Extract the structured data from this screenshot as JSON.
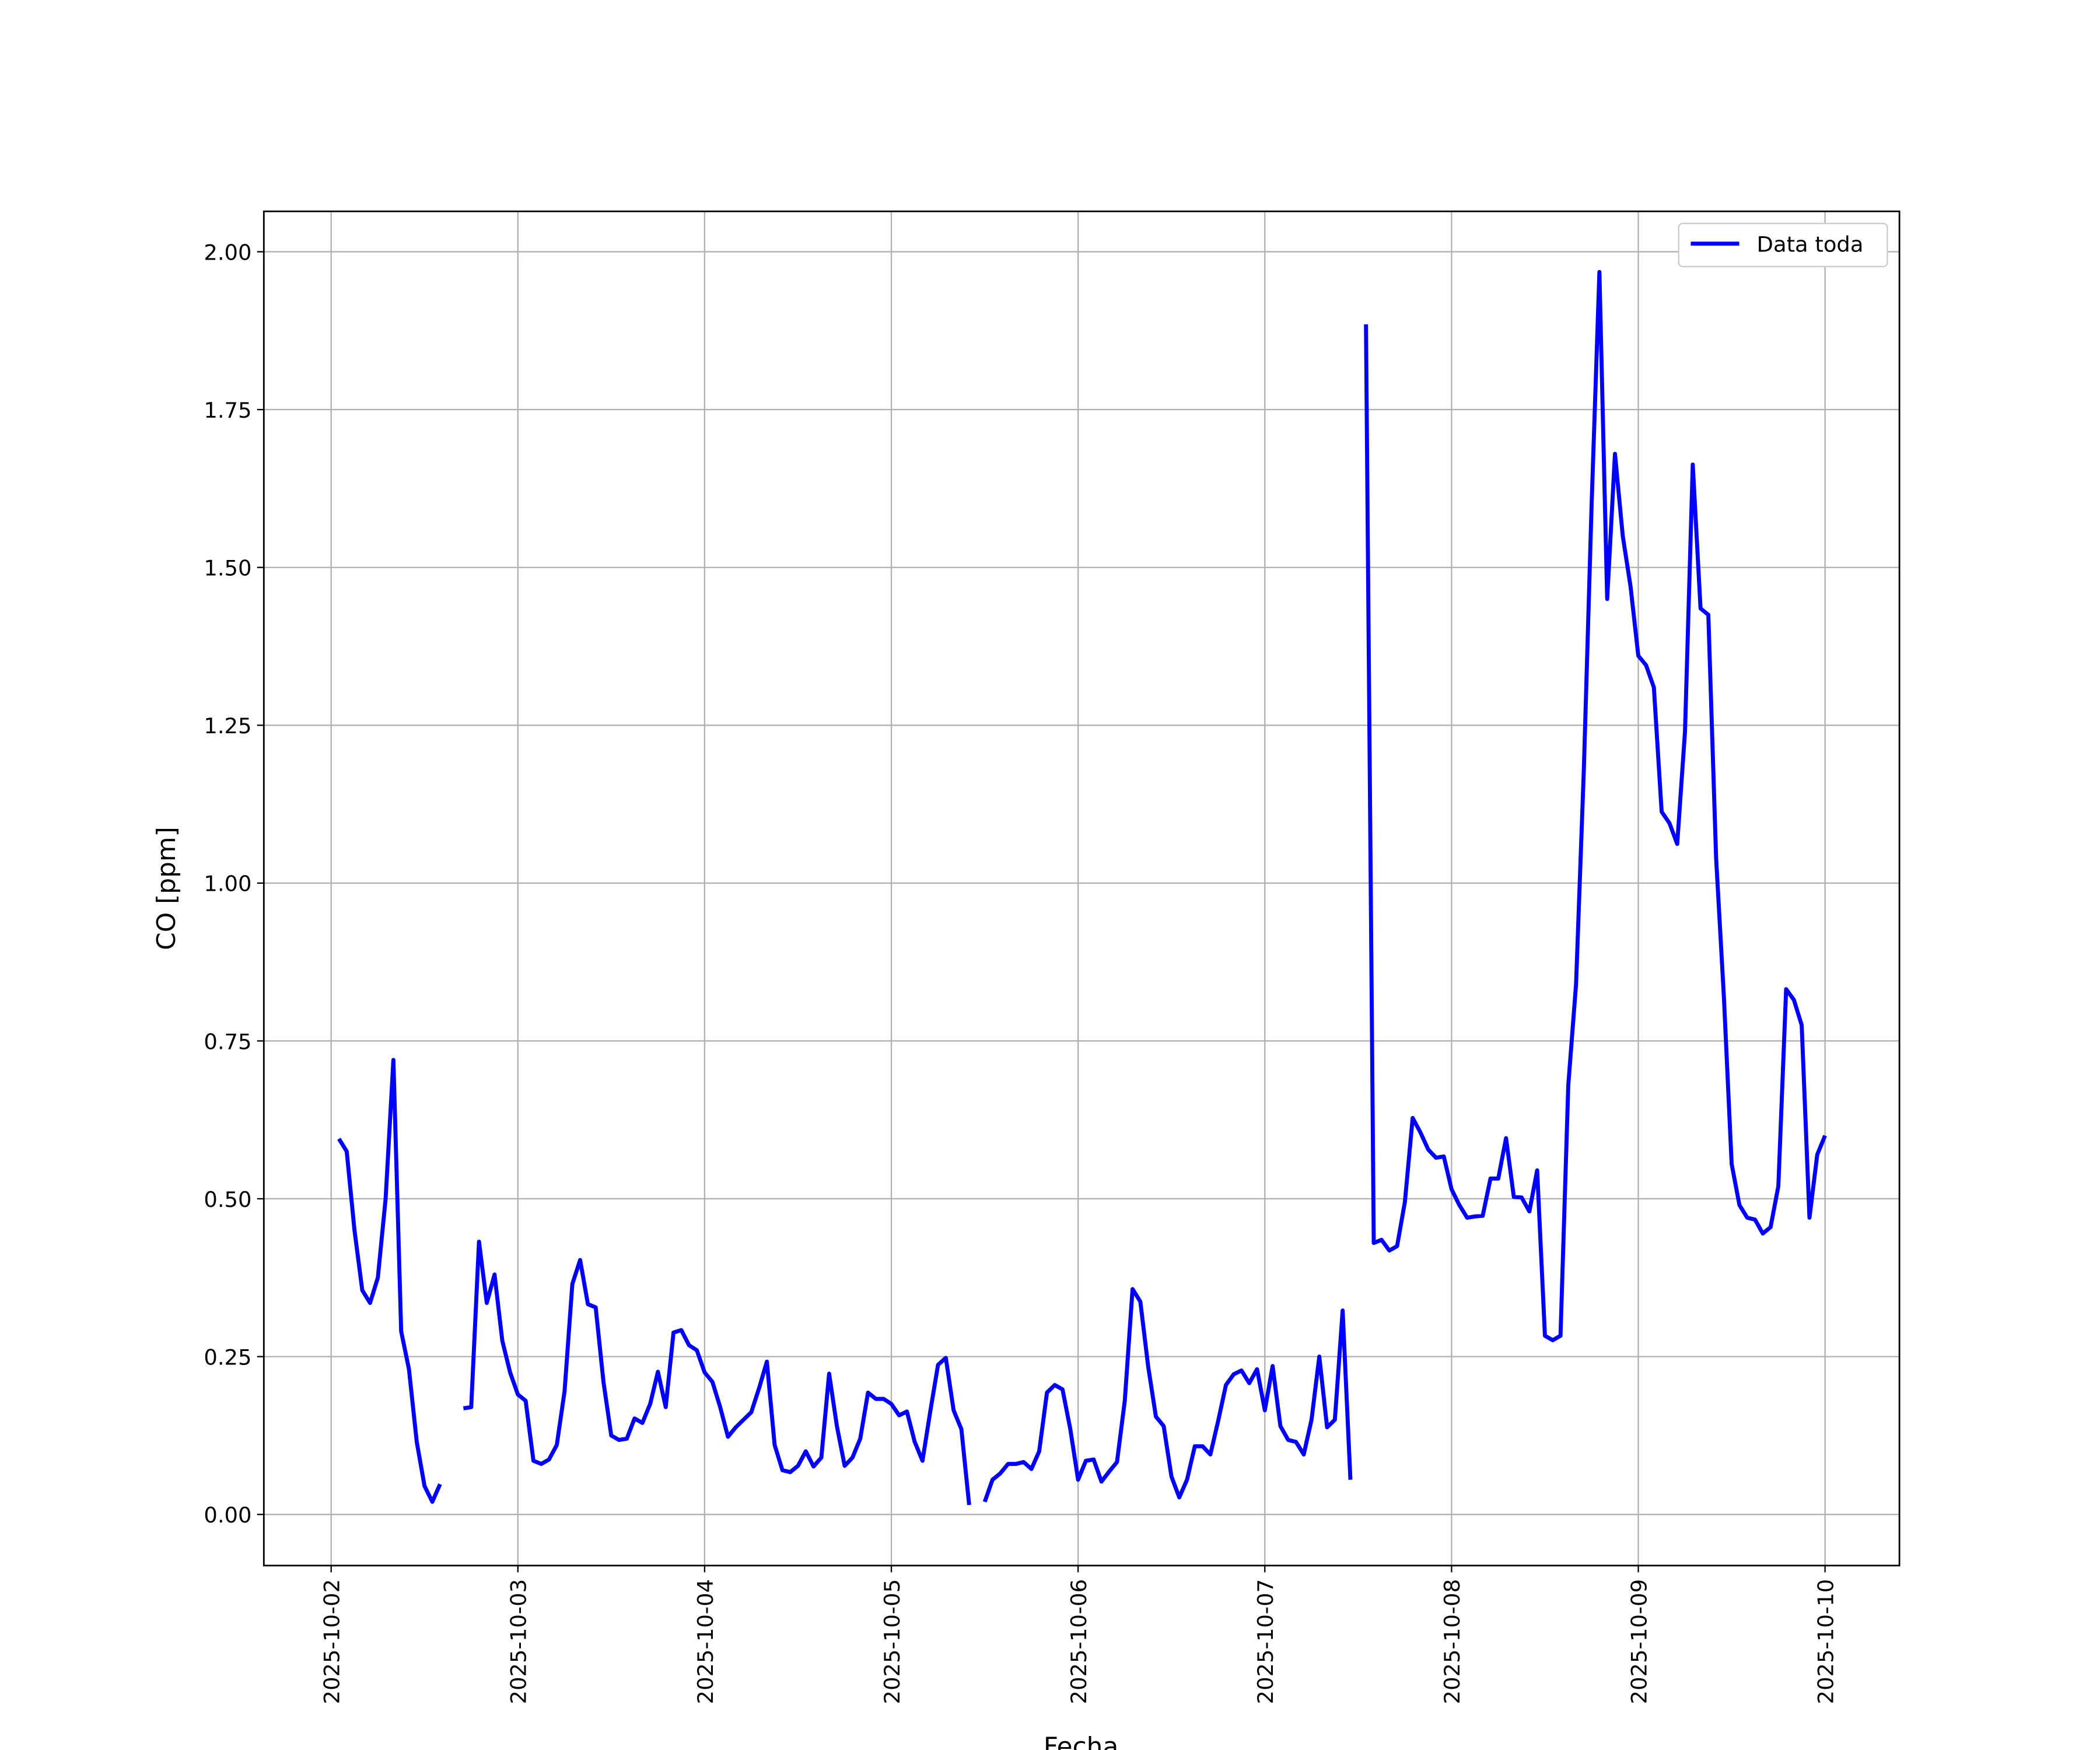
{
  "chart_data": {
    "type": "line",
    "xlabel": "Fecha",
    "ylabel": "CO [ppm]",
    "x": [
      1,
      2,
      3,
      4,
      5,
      6,
      7,
      8,
      9,
      10,
      11,
      12,
      13,
      14,
      15,
      17,
      18,
      19,
      20,
      21,
      22,
      23,
      24,
      25,
      26,
      27,
      28,
      29,
      30,
      31,
      32,
      33,
      34,
      35,
      36,
      37,
      38,
      39,
      40,
      41,
      42,
      43,
      44,
      45,
      46,
      47,
      48,
      49,
      50,
      51,
      52,
      53,
      54,
      55,
      56,
      57,
      58,
      59,
      60,
      61,
      62,
      63,
      64,
      65,
      66,
      67,
      68,
      69,
      70,
      71,
      72,
      73,
      74,
      75,
      76,
      77,
      78,
      79,
      80,
      81,
      82,
      83,
      84,
      85,
      86,
      87,
      88,
      89,
      90,
      91,
      92,
      93,
      94,
      95,
      96,
      97,
      98,
      99,
      100,
      101,
      102,
      103,
      104,
      105,
      106,
      107,
      108,
      109,
      110,
      111,
      112,
      113,
      114,
      115,
      116,
      117,
      118,
      119,
      120,
      121,
      122,
      123,
      124,
      125,
      126,
      127,
      128,
      129,
      130,
      131,
      132,
      133,
      134,
      135,
      136,
      137,
      138,
      139,
      140,
      141,
      142,
      143,
      144,
      145,
      146,
      147,
      148,
      149,
      150,
      151,
      152,
      153,
      154,
      155,
      156,
      157,
      158,
      159,
      160,
      161,
      162,
      163,
      164,
      165,
      166,
      167,
      168,
      169,
      170,
      171,
      172,
      173,
      174,
      175,
      176,
      177,
      178,
      179,
      180,
      181,
      182,
      183,
      184,
      185,
      186,
      187,
      188,
      189,
      190,
      191,
      192
    ],
    "series": [
      {
        "name": "Data toda",
        "color": "#0000ff",
        "values": [
          0.595,
          0.575,
          0.45,
          0.355,
          0.335,
          0.375,
          0.5,
          0.72,
          0.29,
          0.23,
          0.115,
          0.045,
          0.02,
          0.048,
          null,
          0.168,
          0.17,
          0.432,
          0.335,
          0.38,
          0.275,
          0.225,
          0.19,
          0.18,
          0.085,
          0.08,
          0.087,
          0.11,
          0.195,
          0.365,
          0.403,
          0.333,
          0.328,
          0.21,
          0.125,
          0.118,
          0.12,
          0.152,
          0.145,
          0.175,
          0.226,
          0.17,
          0.288,
          0.292,
          0.268,
          0.26,
          0.225,
          0.21,
          0.17,
          0.123,
          0.138,
          0.15,
          0.162,
          0.2,
          0.242,
          0.11,
          0.07,
          0.067,
          0.077,
          0.1,
          0.076,
          0.09,
          0.223,
          0.14,
          0.077,
          0.09,
          0.12,
          0.193,
          0.183,
          0.183,
          0.175,
          0.157,
          0.163,
          0.115,
          0.085,
          0.163,
          0.237,
          0.248,
          0.165,
          0.135,
          0.015,
          null,
          0.02,
          0.055,
          0.065,
          0.08,
          0.08,
          0.083,
          0.072,
          0.1,
          0.193,
          0.205,
          0.198,
          0.135,
          0.055,
          0.085,
          0.087,
          0.052,
          0.068,
          0.083,
          0.18,
          0.357,
          0.337,
          0.235,
          0.155,
          0.14,
          0.06,
          0.027,
          0.055,
          0.108,
          0.108,
          0.095,
          0.148,
          0.205,
          0.222,
          0.228,
          0.208,
          0.23,
          0.165,
          0.235,
          0.14,
          0.118,
          0.115,
          0.095,
          0.15,
          0.25,
          0.138,
          0.15,
          0.323,
          0.055,
          null,
          1.885,
          0.43,
          0.435,
          0.418,
          0.425,
          0.495,
          0.628,
          0.605,
          0.578,
          0.565,
          0.567,
          0.515,
          0.49,
          0.47,
          0.472,
          0.473,
          0.532,
          0.532,
          0.596,
          0.503,
          0.502,
          0.48,
          0.545,
          0.283,
          0.276,
          0.283,
          0.68,
          0.84,
          1.18,
          1.6,
          1.968,
          1.45,
          1.68,
          1.55,
          1.47,
          1.36,
          1.345,
          1.31,
          1.113,
          1.095,
          1.062,
          1.24,
          1.663,
          1.435,
          1.425,
          1.04,
          0.82,
          0.555,
          0.49,
          0.47,
          0.467,
          0.445,
          0.455,
          0.52,
          0.832,
          0.815,
          0.775,
          0.47,
          0.57,
          0.6
        ]
      }
    ],
    "xlim": [
      -8.65,
      201.56
    ],
    "xticks": [
      {
        "value": 0,
        "label": "2025-10-02"
      },
      {
        "value": 24,
        "label": "2025-10-03"
      },
      {
        "value": 48,
        "label": "2025-10-04"
      },
      {
        "value": 72,
        "label": "2025-10-05"
      },
      {
        "value": 96,
        "label": "2025-10-06"
      },
      {
        "value": 120,
        "label": "2025-10-07"
      },
      {
        "value": 144,
        "label": "2025-10-08"
      },
      {
        "value": 168,
        "label": "2025-10-09"
      },
      {
        "value": 192,
        "label": "2025-10-10"
      }
    ],
    "ylim": [
      -0.081,
      2.064
    ],
    "yticks": [
      {
        "value": 0,
        "label": "0.00"
      },
      {
        "value": 0.25,
        "label": "0.25"
      },
      {
        "value": 0.5,
        "label": "0.50"
      },
      {
        "value": 0.75,
        "label": "0.75"
      },
      {
        "value": 1,
        "label": "1.00"
      },
      {
        "value": 1.25,
        "label": "1.25"
      },
      {
        "value": 1.5,
        "label": "1.50"
      },
      {
        "value": 1.75,
        "label": "1.75"
      },
      {
        "value": 2,
        "label": "2.00"
      }
    ],
    "grid": true,
    "legend": "upper right"
  }
}
